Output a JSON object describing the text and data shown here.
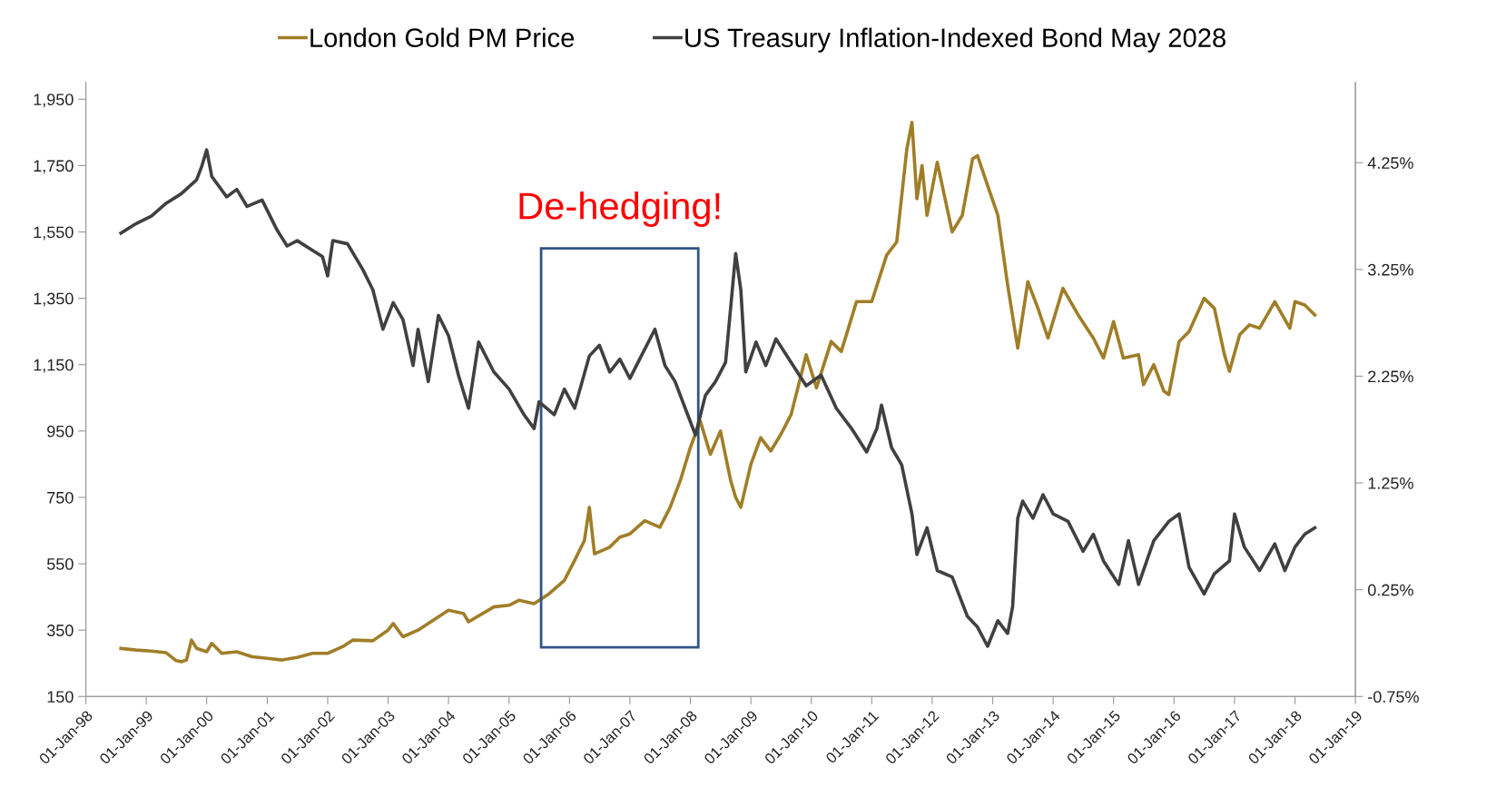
{
  "chart_data": {
    "type": "line",
    "x": [
      "1998-08",
      "1998-11",
      "1999-02",
      "1999-05",
      "1999-07",
      "1999-08",
      "1999-09",
      "1999-10",
      "1999-11",
      "2000-01",
      "2000-02",
      "2000-04",
      "2000-07",
      "2000-10",
      "2001-01",
      "2001-04",
      "2001-07",
      "2001-10",
      "2002-01",
      "2002-04",
      "2002-06",
      "2002-10",
      "2003-01",
      "2003-02",
      "2003-04",
      "2003-07",
      "2003-10",
      "2004-01",
      "2004-04",
      "2004-05",
      "2004-10",
      "2005-01",
      "2005-03",
      "2005-06",
      "2005-09",
      "2005-12",
      "2006-02",
      "2006-04",
      "2006-05",
      "2006-06",
      "2006-09",
      "2006-11",
      "2007-01",
      "2007-04",
      "2007-07",
      "2007-09",
      "2007-11",
      "2008-01",
      "2008-03",
      "2008-05",
      "2008-07",
      "2008-09",
      "2008-10",
      "2008-11",
      "2009-01",
      "2009-03",
      "2009-05",
      "2009-07",
      "2009-09",
      "2009-12",
      "2010-02",
      "2010-05",
      "2010-07",
      "2010-10",
      "2011-01",
      "2011-04",
      "2011-06",
      "2011-08",
      "2011-09",
      "2011-10",
      "2011-11",
      "2011-12",
      "2012-02",
      "2012-05",
      "2012-07",
      "2012-09",
      "2012-10",
      "2012-12",
      "2013-02",
      "2013-04",
      "2013-06",
      "2013-08",
      "2013-10",
      "2013-12",
      "2014-03",
      "2014-06",
      "2014-09",
      "2014-11",
      "2015-01",
      "2015-03",
      "2015-06",
      "2015-07",
      "2015-09",
      "2015-11",
      "2015-12",
      "2016-02",
      "2016-04",
      "2016-07",
      "2016-09",
      "2016-11",
      "2016-12",
      "2017-02",
      "2017-04",
      "2017-06",
      "2017-09",
      "2017-12",
      "2018-01",
      "2018-03",
      "2018-05"
    ],
    "series": [
      {
        "name": "London Gold PM Price",
        "color": "#a07e28",
        "axis": "y",
        "values": [
          295,
          290,
          287,
          282,
          258,
          255,
          260,
          320,
          295,
          285,
          310,
          280,
          285,
          270,
          265,
          260,
          268,
          280,
          280,
          300,
          320,
          318,
          350,
          370,
          330,
          350,
          380,
          410,
          400,
          375,
          420,
          425,
          440,
          430,
          460,
          500,
          560,
          620,
          720,
          580,
          600,
          630,
          640,
          680,
          660,
          720,
          800,
          900,
          980,
          880,
          950,
          800,
          750,
          720,
          850,
          930,
          890,
          940,
          1000,
          1180,
          1080,
          1220,
          1190,
          1340,
          1340,
          1480,
          1520,
          1800,
          1880,
          1650,
          1750,
          1600,
          1760,
          1550,
          1600,
          1770,
          1780,
          1690,
          1600,
          1390,
          1200,
          1400,
          1320,
          1230,
          1380,
          1300,
          1230,
          1170,
          1280,
          1170,
          1180,
          1090,
          1150,
          1070,
          1060,
          1220,
          1250,
          1350,
          1320,
          1180,
          1130,
          1240,
          1270,
          1260,
          1340,
          1260,
          1340,
          1330,
          1300
        ]
      },
      {
        "name": "US Treasury Inflation-Indexed Bond May 2028",
        "color": "#404040",
        "axis": "y2",
        "x": [
          "1998-08",
          "1998-11",
          "1999-02",
          "1999-05",
          "1999-08",
          "1999-11",
          "1999-12",
          "2000-01",
          "2000-02",
          "2000-05",
          "2000-07",
          "2000-09",
          "2000-12",
          "2001-03",
          "2001-05",
          "2001-07",
          "2001-10",
          "2001-12",
          "2002-01",
          "2002-02",
          "2002-05",
          "2002-08",
          "2002-10",
          "2002-12",
          "2003-02",
          "2003-04",
          "2003-06",
          "2003-07",
          "2003-09",
          "2003-11",
          "2004-01",
          "2004-03",
          "2004-05",
          "2004-07",
          "2004-10",
          "2005-01",
          "2005-04",
          "2005-06",
          "2005-07",
          "2005-10",
          "2005-12",
          "2006-02",
          "2006-05",
          "2006-07",
          "2006-09",
          "2006-11",
          "2007-01",
          "2007-03",
          "2007-06",
          "2007-08",
          "2007-10",
          "2007-12",
          "2008-02",
          "2008-04",
          "2008-06",
          "2008-08",
          "2008-10",
          "2008-11",
          "2008-12",
          "2009-02",
          "2009-04",
          "2009-06",
          "2009-09",
          "2009-12",
          "2010-03",
          "2010-06",
          "2010-09",
          "2010-12",
          "2011-02",
          "2011-03",
          "2011-05",
          "2011-07",
          "2011-09",
          "2011-10",
          "2011-12",
          "2012-02",
          "2012-05",
          "2012-08",
          "2012-10",
          "2012-12",
          "2013-02",
          "2013-04",
          "2013-05",
          "2013-06",
          "2013-07",
          "2013-09",
          "2013-11",
          "2014-01",
          "2014-04",
          "2014-07",
          "2014-09",
          "2014-11",
          "2015-02",
          "2015-04",
          "2015-06",
          "2015-09",
          "2015-12",
          "2016-02",
          "2016-04",
          "2016-07",
          "2016-09",
          "2016-12",
          "2017-01",
          "2017-03",
          "2017-06",
          "2017-09",
          "2017-11",
          "2018-01",
          "2018-03",
          "2018-05"
        ],
        "values": [
          3.59,
          3.68,
          3.75,
          3.87,
          3.96,
          4.09,
          4.21,
          4.37,
          4.12,
          3.93,
          4.0,
          3.84,
          3.9,
          3.62,
          3.47,
          3.52,
          3.43,
          3.37,
          3.19,
          3.52,
          3.49,
          3.25,
          3.06,
          2.69,
          2.94,
          2.78,
          2.35,
          2.69,
          2.2,
          2.82,
          2.63,
          2.26,
          1.95,
          2.57,
          2.29,
          2.13,
          1.89,
          1.76,
          2.01,
          1.89,
          2.13,
          1.95,
          2.44,
          2.54,
          2.29,
          2.41,
          2.23,
          2.41,
          2.69,
          2.35,
          2.2,
          1.95,
          1.7,
          2.07,
          2.2,
          2.38,
          3.4,
          3.06,
          2.29,
          2.57,
          2.35,
          2.6,
          2.38,
          2.16,
          2.26,
          1.95,
          1.76,
          1.54,
          1.76,
          1.98,
          1.58,
          1.42,
          0.96,
          0.58,
          0.83,
          0.43,
          0.37,
          0.0,
          -0.1,
          -0.28,
          -0.04,
          -0.16,
          0.09,
          0.92,
          1.08,
          0.92,
          1.14,
          0.96,
          0.89,
          0.61,
          0.77,
          0.52,
          0.3,
          0.71,
          0.3,
          0.71,
          0.89,
          0.96,
          0.46,
          0.21,
          0.4,
          0.52,
          0.96,
          0.65,
          0.43,
          0.68,
          0.43,
          0.65,
          0.77,
          0.83
        ]
      }
    ],
    "xlim": [
      "1998-01-01",
      "2019-01-01"
    ],
    "xticks": [
      {
        "value": "1998-01-01",
        "label": "01-Jan-98"
      },
      {
        "value": "1999-01-01",
        "label": "01-Jan-99"
      },
      {
        "value": "2000-01-01",
        "label": "01-Jan-00"
      },
      {
        "value": "2001-01-01",
        "label": "01-Jan-01"
      },
      {
        "value": "2002-01-01",
        "label": "01-Jan-02"
      },
      {
        "value": "2003-01-01",
        "label": "01-Jan-03"
      },
      {
        "value": "2004-01-01",
        "label": "01-Jan-04"
      },
      {
        "value": "2005-01-01",
        "label": "01-Jan-05"
      },
      {
        "value": "2006-01-01",
        "label": "01-Jan-06"
      },
      {
        "value": "2007-01-01",
        "label": "01-Jan-07"
      },
      {
        "value": "2008-01-01",
        "label": "01-Jan-08"
      },
      {
        "value": "2009-01-01",
        "label": "01-Jan-09"
      },
      {
        "value": "2010-01-01",
        "label": "01-Jan-10"
      },
      {
        "value": "2011-01-01",
        "label": "01-Jan-11"
      },
      {
        "value": "2012-01-01",
        "label": "01-Jan-12"
      },
      {
        "value": "2013-01-01",
        "label": "01-Jan-13"
      },
      {
        "value": "2014-01-01",
        "label": "01-Jan-14"
      },
      {
        "value": "2015-01-01",
        "label": "01-Jan-15"
      },
      {
        "value": "2016-01-01",
        "label": "01-Jan-16"
      },
      {
        "value": "2017-01-01",
        "label": "01-Jan-17"
      },
      {
        "value": "2018-01-01",
        "label": "01-Jan-18"
      },
      {
        "value": "2019-01-01",
        "label": "01-Jan-19"
      }
    ],
    "ylim": [
      150,
      2000
    ],
    "yticks": [
      150,
      350,
      550,
      750,
      950,
      {
        "value": 1150,
        "label": "1,150"
      },
      {
        "value": 1350,
        "label": "1,350"
      },
      {
        "value": 1550,
        "label": "1,550"
      },
      {
        "value": 1750,
        "label": "1,750"
      },
      {
        "value": 1950,
        "label": "1,950"
      }
    ],
    "y2lim": [
      -0.75,
      5.0
    ],
    "y2ticks": [
      {
        "value": -0.75,
        "label": "-0.75%"
      },
      {
        "value": 0.25,
        "label": "0.25%"
      },
      {
        "value": 1.25,
        "label": "1.25%"
      },
      {
        "value": 2.25,
        "label": "2.25%"
      },
      {
        "value": 3.25,
        "label": "3.25%"
      },
      {
        "value": 4.25,
        "label": "4.25%"
      }
    ],
    "annotations": [
      "De-hedging!"
    ],
    "legend": "top",
    "grid": false,
    "marker": "none",
    "line_style": "solid"
  }
}
